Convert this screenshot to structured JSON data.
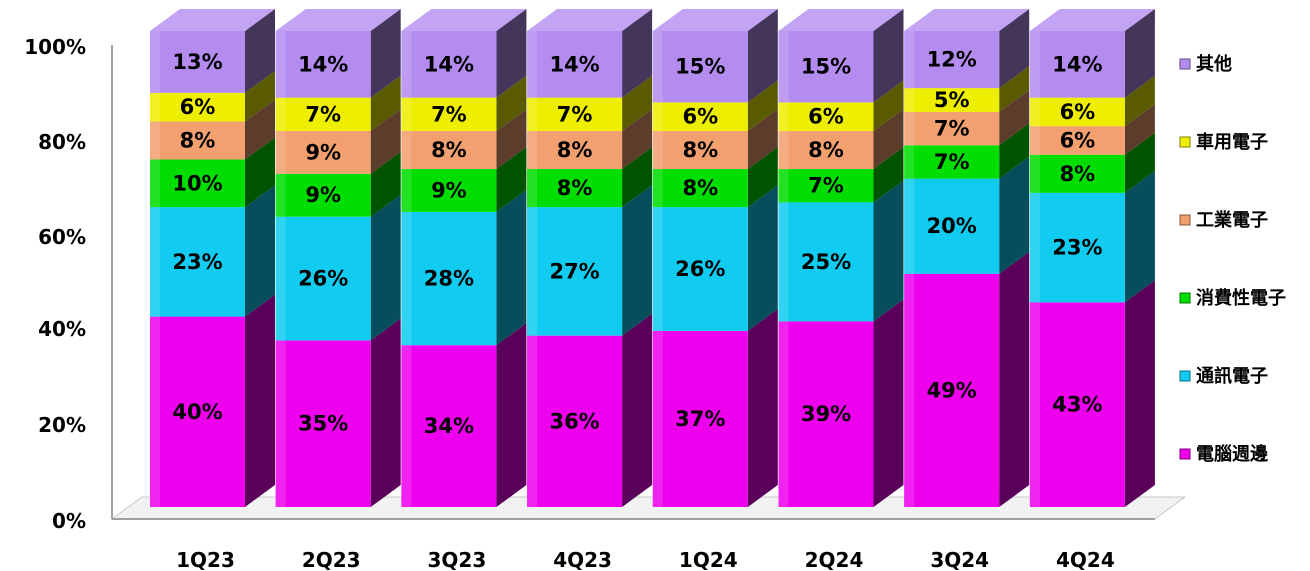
{
  "chart_data": {
    "type": "bar",
    "stacked": true,
    "three_d": true,
    "categories": [
      "1Q23",
      "2Q23",
      "3Q23",
      "4Q23",
      "1Q24",
      "2Q24",
      "3Q24",
      "4Q24"
    ],
    "series": [
      {
        "name": "電腦週邊",
        "color": "#ee00ee",
        "values": [
          40,
          35,
          34,
          36,
          37,
          39,
          49,
          43
        ]
      },
      {
        "name": "通訊電子",
        "color": "#11ccf0",
        "values": [
          23,
          26,
          28,
          27,
          26,
          25,
          20,
          23
        ]
      },
      {
        "name": "消費性電子",
        "color": "#00dd00",
        "values": [
          10,
          9,
          9,
          8,
          8,
          7,
          7,
          8
        ]
      },
      {
        "name": "工業電子",
        "color": "#f2a070",
        "values": [
          8,
          9,
          8,
          8,
          8,
          8,
          7,
          6
        ]
      },
      {
        "name": "車用電子",
        "color": "#eeee00",
        "values": [
          6,
          7,
          7,
          7,
          6,
          6,
          5,
          6
        ]
      },
      {
        "name": "其他",
        "color": "#b48cf0",
        "values": [
          13,
          14,
          14,
          14,
          15,
          15,
          12,
          14
        ]
      }
    ],
    "ylim": [
      0,
      100
    ],
    "yticks": [
      "0%",
      "20%",
      "40%",
      "60%",
      "80%",
      "100%"
    ],
    "value_suffix": "%",
    "grid": false,
    "legend_position": "right",
    "title": "",
    "xlabel": "",
    "ylabel": ""
  }
}
